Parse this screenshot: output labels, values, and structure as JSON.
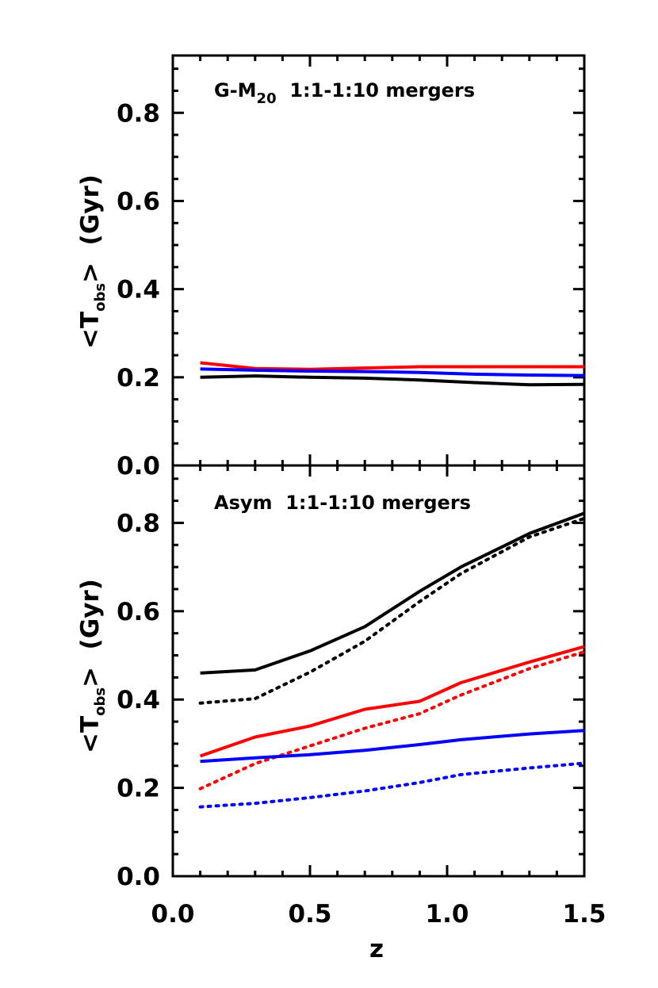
{
  "chart_data": [
    {
      "type": "line",
      "panel_label": {
        "main": "G-M",
        "sub": "20",
        "rest": "  1:1-1:10 mergers"
      },
      "ylabel": {
        "main": "<T",
        "sub": "obs",
        "rest": ">  (Gyr)"
      },
      "xlabel": "",
      "xlim": [
        0.0,
        1.5
      ],
      "ylim": [
        0.0,
        0.93
      ],
      "yticks": [
        "0.0",
        "0.2",
        "0.4",
        "0.6",
        "0.8"
      ],
      "yticks_values": [
        0.0,
        0.2,
        0.4,
        0.6,
        0.8
      ],
      "xticks_values": [
        0.0,
        0.5,
        1.0,
        1.5
      ],
      "x": [
        0.1,
        0.3,
        0.5,
        0.7,
        0.9,
        1.1,
        1.3,
        1.5
      ],
      "series": [
        {
          "color": "#000000",
          "style": "solid",
          "values": [
            0.2,
            0.203,
            0.2,
            0.198,
            0.194,
            0.188,
            0.183,
            0.184
          ]
        },
        {
          "color": "#ff0000",
          "style": "solid",
          "values": [
            0.233,
            0.22,
            0.218,
            0.221,
            0.224,
            0.224,
            0.224,
            0.224
          ]
        },
        {
          "color": "#0000ff",
          "style": "solid",
          "values": [
            0.219,
            0.216,
            0.214,
            0.213,
            0.211,
            0.207,
            0.205,
            0.204
          ]
        }
      ]
    },
    {
      "type": "line",
      "panel_label": {
        "main": "Asym",
        "sub": "",
        "rest": "  1:1-1:10 mergers"
      },
      "ylabel": {
        "main": "<T",
        "sub": "obs",
        "rest": ">  (Gyr)"
      },
      "xlabel": "z",
      "xlim": [
        0.0,
        1.5
      ],
      "ylim": [
        0.0,
        0.93
      ],
      "yticks": [
        "0.0",
        "0.2",
        "0.4",
        "0.6",
        "0.8"
      ],
      "yticks_values": [
        0.0,
        0.2,
        0.4,
        0.6,
        0.8
      ],
      "xticks": [
        "0.0",
        "0.5",
        "1.0",
        "1.5"
      ],
      "xticks_values": [
        0.0,
        0.5,
        1.0,
        1.5
      ],
      "x": [
        0.1,
        0.3,
        0.5,
        0.7,
        0.9,
        1.05,
        1.3,
        1.5
      ],
      "series": [
        {
          "color": "#000000",
          "style": "solid",
          "values": [
            0.46,
            0.467,
            0.51,
            0.565,
            0.645,
            0.7,
            0.776,
            0.822
          ]
        },
        {
          "color": "#000000",
          "style": "dotted",
          "values": [
            0.392,
            0.402,
            0.462,
            0.532,
            0.622,
            0.685,
            0.768,
            0.81
          ]
        },
        {
          "color": "#ff0000",
          "style": "solid",
          "values": [
            0.272,
            0.315,
            0.34,
            0.378,
            0.396,
            0.438,
            0.485,
            0.52
          ]
        },
        {
          "color": "#ff0000",
          "style": "dotted",
          "values": [
            0.198,
            0.255,
            0.295,
            0.335,
            0.368,
            0.41,
            0.47,
            0.508
          ]
        },
        {
          "color": "#0000ff",
          "style": "solid",
          "values": [
            0.26,
            0.268,
            0.275,
            0.285,
            0.298,
            0.309,
            0.322,
            0.33
          ]
        },
        {
          "color": "#0000ff",
          "style": "dotted",
          "values": [
            0.157,
            0.165,
            0.178,
            0.193,
            0.212,
            0.23,
            0.245,
            0.256
          ]
        }
      ]
    }
  ]
}
